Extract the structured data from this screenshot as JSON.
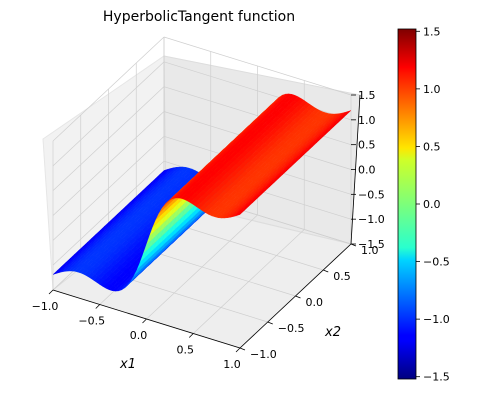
{
  "chart_data": {
    "type": "surface",
    "title": "HyperbolicTangent function",
    "xlabel": "x1",
    "ylabel": "x2",
    "zlabel": "",
    "xlim": [
      -1.0,
      1.0
    ],
    "ylim": [
      -1.0,
      1.0
    ],
    "zlim": [
      -1.5,
      1.5
    ],
    "x_ticks": [
      "−1.0",
      "−0.5",
      "0.0",
      "0.5",
      "1.0"
    ],
    "y_ticks": [
      "−1.0",
      "−0.5",
      "0.0",
      "0.5",
      "1.0"
    ],
    "z_ticks": [
      "−1.5",
      "−1.0",
      "−0.5",
      "0.0",
      "0.5",
      "1.0",
      "1.5"
    ],
    "colorbar_ticks": [
      "−1.5",
      "−1.0",
      "−0.5",
      "0.0",
      "0.5",
      "1.0",
      "1.5"
    ],
    "colorbar_range": [
      -1.52,
      1.52
    ],
    "colormap": "jet",
    "surface": "approximately a step in x1 from -1.3 (x1 < 0) to +1.3 (x1 > 0) with a wavy shoulder near x1 = ±0.5; constant along x2",
    "grid": true
  }
}
